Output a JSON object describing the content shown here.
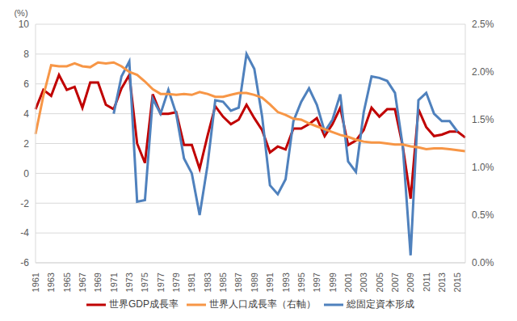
{
  "chart_data": {
    "type": "line",
    "ylabel": "(%)",
    "categories": [
      "1961",
      null,
      "1963",
      null,
      "1965",
      null,
      "1967",
      null,
      "1969",
      null,
      "1971",
      null,
      "1973",
      null,
      "1975",
      null,
      "1977",
      null,
      "1979",
      null,
      "1981",
      null,
      "1983",
      null,
      "1985",
      null,
      "1987",
      null,
      "1989",
      null,
      "1991",
      null,
      "1993",
      null,
      "1995",
      null,
      "1997",
      null,
      "1999",
      null,
      "2001",
      null,
      "2003",
      null,
      "2005",
      null,
      "2007",
      null,
      "2009",
      null,
      "2011",
      null,
      "2013",
      null,
      "2015",
      null
    ],
    "ylim": [
      -6,
      10
    ],
    "yticks": [
      -6,
      -4,
      -2,
      0,
      2,
      4,
      6,
      8,
      10
    ],
    "y2lim": [
      0,
      2.5
    ],
    "y2ticks": [
      {
        "value": 0,
        "label": "0.0%"
      },
      {
        "value": 0.5,
        "label": "0.5%"
      },
      {
        "value": 1,
        "label": "1.0%"
      },
      {
        "value": 1.5,
        "label": "1.5%"
      },
      {
        "value": 2,
        "label": "2.0%"
      },
      {
        "value": 2.5,
        "label": "2.5%"
      }
    ],
    "grid": true,
    "legend": "bottom",
    "series": [
      {
        "name": "世界GDP成長率",
        "color": "#C00000",
        "values": [
          4.3,
          5.6,
          5.2,
          6.6,
          5.6,
          5.8,
          4.4,
          6.1,
          6.1,
          4.6,
          4.3,
          5.7,
          6.6,
          2.0,
          0.7,
          5.3,
          4.0,
          4.0,
          4.1,
          1.9,
          1.9,
          0.3,
          2.5,
          4.5,
          3.8,
          3.3,
          3.6,
          4.6,
          3.7,
          2.9,
          1.4,
          1.8,
          1.6,
          3.0,
          3.0,
          3.3,
          3.7,
          2.5,
          3.3,
          4.4,
          1.9,
          2.2,
          2.9,
          4.4,
          3.8,
          4.3,
          4.3,
          1.8,
          -1.7,
          4.3,
          3.1,
          2.5,
          2.6,
          2.8,
          2.8,
          2.4
        ]
      },
      {
        "name": "総固定資本形成",
        "color": "#4F81BD",
        "values": [
          null,
          null,
          null,
          null,
          null,
          null,
          null,
          null,
          null,
          null,
          4.0,
          6.5,
          7.5,
          -1.9,
          -1.8,
          5.0,
          4.0,
          5.6,
          4.0,
          1.0,
          0.0,
          -2.8,
          0.5,
          4.9,
          4.8,
          4.2,
          4.4,
          8.0,
          7.0,
          3.8,
          -0.8,
          -1.4,
          -0.4,
          3.5,
          4.8,
          5.7,
          4.6,
          2.8,
          3.6,
          5.3,
          0.8,
          0.1,
          4.1,
          6.5,
          6.4,
          6.2,
          5.4,
          1.8,
          -5.5,
          4.9,
          5.4,
          4.0,
          3.5,
          3.5,
          2.8,
          null
        ]
      },
      {
        "name": "世界人口成長率（右軸）",
        "color": "#F79646",
        "axis": "y2",
        "values": [
          1.35,
          1.75,
          2.07,
          2.06,
          2.06,
          2.09,
          2.06,
          2.05,
          2.1,
          2.09,
          2.1,
          2.06,
          2.0,
          1.97,
          1.9,
          1.82,
          1.77,
          1.77,
          1.76,
          1.77,
          1.76,
          1.79,
          1.77,
          1.74,
          1.74,
          1.76,
          1.78,
          1.78,
          1.76,
          1.73,
          1.66,
          1.58,
          1.55,
          1.51,
          1.5,
          1.46,
          1.43,
          1.4,
          1.37,
          1.34,
          1.32,
          1.29,
          1.27,
          1.26,
          1.26,
          1.25,
          1.24,
          1.24,
          1.22,
          1.21,
          1.19,
          1.2,
          1.2,
          1.19,
          1.18,
          1.17
        ]
      }
    ]
  }
}
